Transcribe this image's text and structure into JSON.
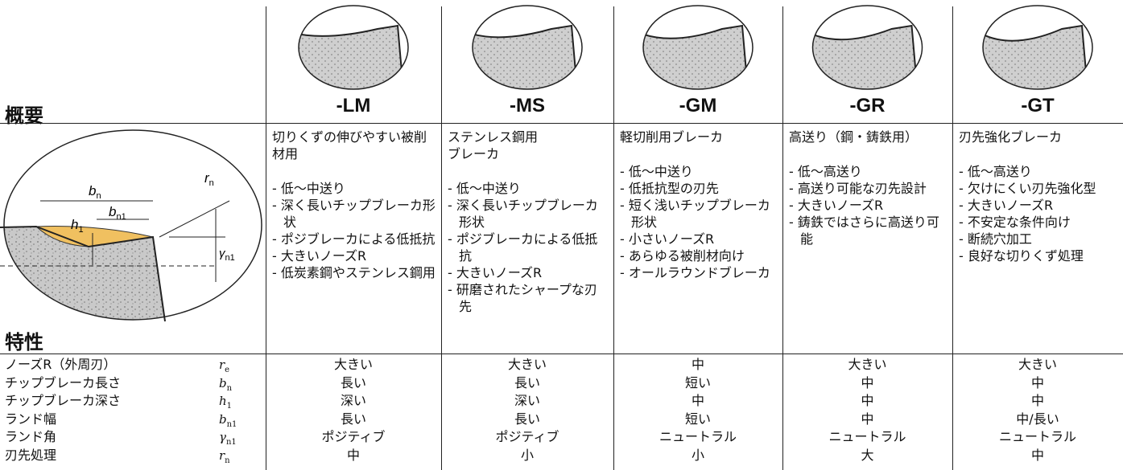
{
  "header": {
    "overview_label": "概要",
    "features_label": "特性"
  },
  "diagram": {
    "labels": [
      {
        "text": "b",
        "sub": "n"
      },
      {
        "text": "b",
        "sub": "n1"
      },
      {
        "text": "r",
        "sub": "n"
      },
      {
        "text": "h",
        "sub": "1"
      },
      {
        "text": "γ",
        "sub": "n1"
      }
    ]
  },
  "columns": [
    {
      "name": "-LM",
      "title_lines": [
        "切りくずの伸びやすい被削材用"
      ],
      "points": [
        "- 低～中送り",
        "- 深く長いチップブレーカ形状",
        "- ポジブレーカによる低抵抗",
        "- 大きいノーズR",
        "- 低炭素鋼やステンレス鋼用"
      ]
    },
    {
      "name": "-MS",
      "title_lines": [
        "ステンレス鋼用",
        "ブレーカ"
      ],
      "points": [
        "- 低～中送り",
        "- 深く長いチップブレーカ形状",
        "- ポジブレーカによる低抵抗",
        "- 大きいノーズR",
        "- 研磨されたシャープな刃先"
      ]
    },
    {
      "name": "-GM",
      "title_lines": [
        "軽切削用ブレーカ"
      ],
      "points": [
        "- 低～中送り",
        "- 低抵抗型の刃先",
        "- 短く浅いチップブレーカ形状",
        "- 小さいノーズR",
        "- あらゆる被削材向け",
        "- オールラウンドブレーカ"
      ]
    },
    {
      "name": "-GR",
      "title_lines": [
        "高送り（鋼・鋳鉄用）"
      ],
      "points": [
        "- 低～高送り",
        "- 高送り可能な刃先設計",
        "- 大きいノーズR",
        "- 鋳鉄ではさらに高送り可能"
      ]
    },
    {
      "name": "-GT",
      "title_lines": [
        "刃先強化ブレーカ"
      ],
      "points": [
        "- 低～高送り",
        "- 欠けにくい刃先強化型",
        "- 大きいノーズR",
        "- 不安定な条件向け",
        "- 断続穴加工",
        "- 良好な切りくず処理"
      ]
    }
  ],
  "properties": {
    "rows": [
      {
        "label": "ノーズR（外周刃）",
        "symbol": {
          "text": "r",
          "sub": "e"
        },
        "values": [
          "大きい",
          "大きい",
          "中",
          "大きい",
          "大きい"
        ]
      },
      {
        "label": "チップブレーカ長さ",
        "symbol": {
          "text": "b",
          "sub": "n"
        },
        "values": [
          "長い",
          "長い",
          "短い",
          "中",
          "中"
        ]
      },
      {
        "label": "チップブレーカ深さ",
        "symbol": {
          "text": "h",
          "sub": "1"
        },
        "values": [
          "深い",
          "深い",
          "中",
          "中",
          "中"
        ]
      },
      {
        "label": "ランド幅",
        "symbol": {
          "text": "b",
          "sub": "n1"
        },
        "values": [
          "長い",
          "長い",
          "短い",
          "中",
          "中/長い"
        ]
      },
      {
        "label": "ランド角",
        "symbol": {
          "text": "γ",
          "sub": "n1"
        },
        "values": [
          "ポジティブ",
          "ポジティブ",
          "ニュートラル",
          "ニュートラル",
          "ニュートラル"
        ]
      },
      {
        "label": "刃先処理",
        "symbol": {
          "text": "r",
          "sub": "n"
        },
        "values": [
          "中",
          "小",
          "小",
          "大",
          "中"
        ]
      }
    ]
  }
}
